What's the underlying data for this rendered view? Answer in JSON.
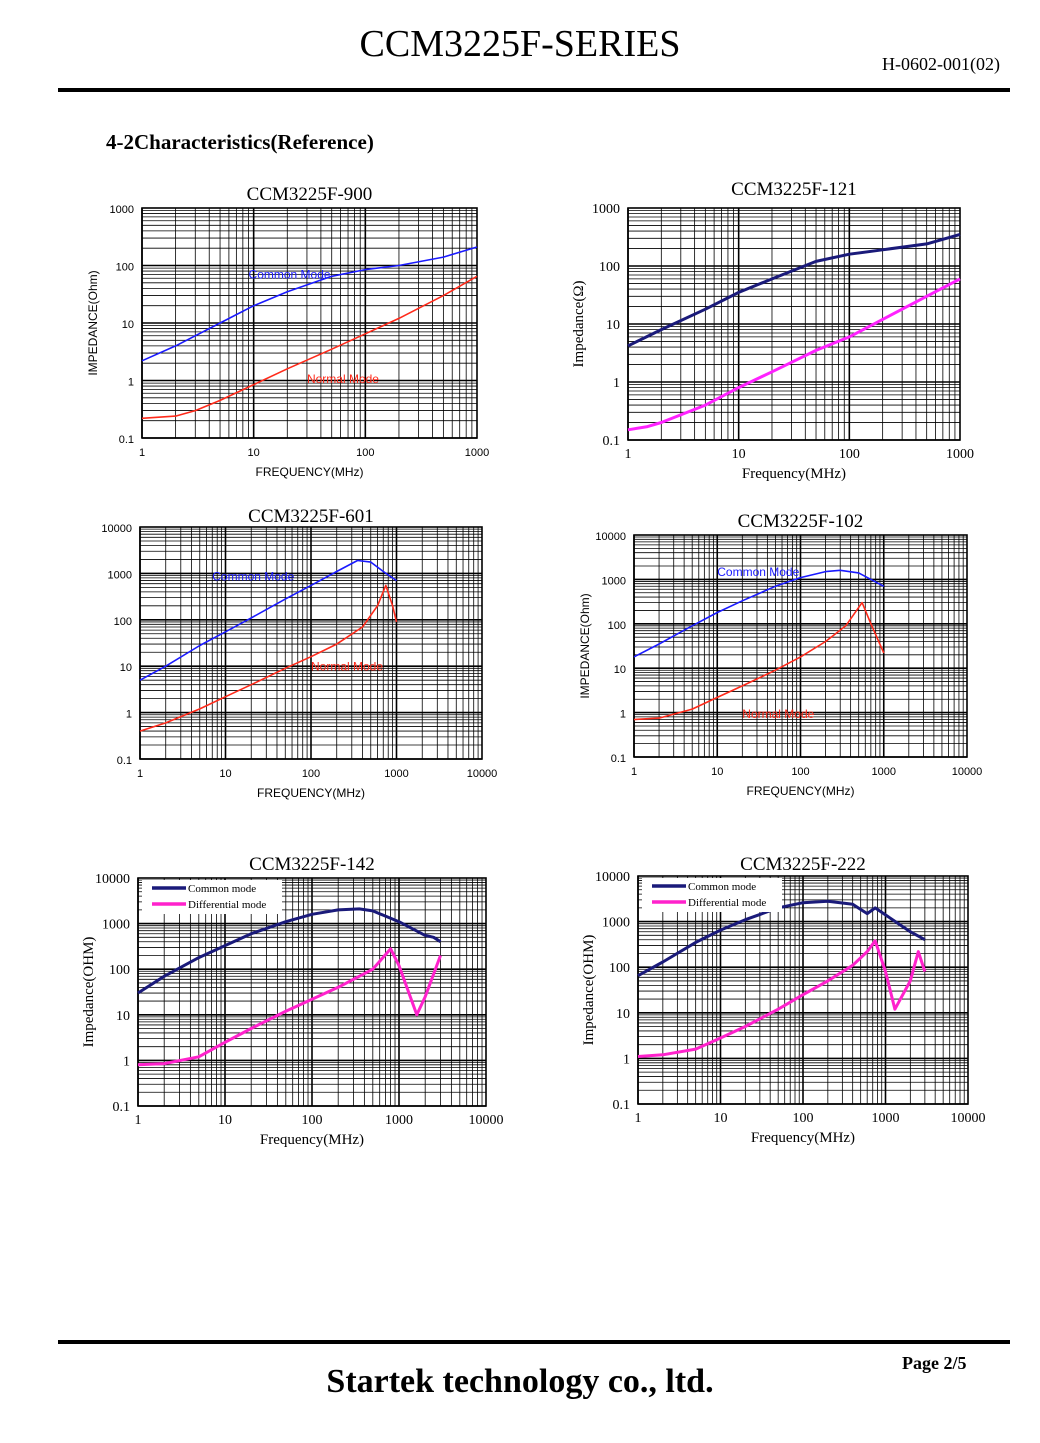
{
  "header": {
    "title": "CCM3225F-SERIES",
    "code": "H-0602-001(02)"
  },
  "section_title": "4-2Characteristics(Reference)",
  "footer": {
    "page": "Page 2/5",
    "company": "Startek technology co., ltd."
  },
  "chart_data": [
    {
      "type": "line",
      "title": "CCM3225F-900",
      "xlabel": "FREQUENCY(MHz)",
      "ylabel": "IMPEDANCE(Ohm)",
      "xscale": "log",
      "yscale": "log",
      "xlim": [
        1,
        1000
      ],
      "ylim": [
        0.1,
        1000
      ],
      "xticks": [
        "1",
        "10",
        "100",
        "1000"
      ],
      "yticks": [
        "0.1",
        "1",
        "10",
        "100",
        "1000"
      ],
      "grid": true,
      "series": [
        {
          "name": "Common Mode",
          "color": "#1a1aff",
          "x": [
            1,
            2,
            5,
            10,
            20,
            50,
            100,
            200,
            500,
            1000
          ],
          "y": [
            2.2,
            4,
            10,
            20,
            35,
            65,
            85,
            100,
            140,
            210
          ]
        },
        {
          "name": "Normal Mode",
          "color": "#ff2a1a",
          "x": [
            1,
            2,
            3,
            5,
            10,
            20,
            50,
            100,
            200,
            500,
            1000
          ],
          "y": [
            0.22,
            0.24,
            0.3,
            0.45,
            0.85,
            1.6,
            3.5,
            6.5,
            12,
            30,
            65
          ]
        }
      ]
    },
    {
      "type": "line",
      "title": "CCM3225F-121",
      "xlabel": "Frequency(MHz)",
      "ylabel": "Impedance(Ω)",
      "xscale": "log",
      "yscale": "log",
      "xlim": [
        1,
        1000
      ],
      "ylim": [
        0.1,
        1000
      ],
      "xticks": [
        "1",
        "10",
        "100",
        "1000"
      ],
      "yticks": [
        "0.1",
        "1",
        "10",
        "100",
        "1000"
      ],
      "grid": true,
      "series": [
        {
          "name": "",
          "color": "#1a1a7a",
          "x": [
            1,
            2,
            5,
            10,
            20,
            50,
            100,
            200,
            500,
            1000
          ],
          "y": [
            4.2,
            8,
            18,
            35,
            60,
            120,
            160,
            190,
            240,
            350
          ]
        },
        {
          "name": "",
          "color": "#ff22ff",
          "x": [
            1,
            1.5,
            2,
            5,
            10,
            20,
            50,
            100,
            200,
            500,
            1000
          ],
          "y": [
            0.15,
            0.17,
            0.2,
            0.4,
            0.8,
            1.5,
            3.5,
            6,
            12,
            30,
            60
          ]
        }
      ]
    },
    {
      "type": "line",
      "title": "CCM3225F-601",
      "xlabel": "FREQUENCY(MHz)",
      "ylabel": "",
      "xscale": "log",
      "yscale": "log",
      "xlim": [
        1,
        10000
      ],
      "ylim": [
        0.1,
        10000
      ],
      "xticks": [
        "1",
        "10",
        "100",
        "1000",
        "10000"
      ],
      "yticks": [
        "0.1",
        "1",
        "10",
        "100",
        "1000",
        "10000"
      ],
      "grid": true,
      "series": [
        {
          "name": "Common Mode",
          "color": "#1a1aff",
          "x": [
            1,
            2,
            5,
            10,
            20,
            50,
            100,
            200,
            350,
            500,
            700,
            1000
          ],
          "y": [
            5,
            10,
            28,
            55,
            110,
            280,
            550,
            1100,
            1900,
            1750,
            1100,
            700
          ]
        },
        {
          "name": "Normal Mode",
          "color": "#ff2a1a",
          "x": [
            1,
            2,
            5,
            10,
            20,
            50,
            100,
            200,
            400,
            600,
            750,
            900,
            1000
          ],
          "y": [
            0.4,
            0.6,
            1.2,
            2.2,
            4,
            9,
            16,
            30,
            70,
            200,
            550,
            200,
            90
          ]
        }
      ]
    },
    {
      "type": "line",
      "title": "CCM3225F-102",
      "xlabel": "FREQUENCY(MHz)",
      "ylabel": "IMPEDANCE(Ohm)",
      "xscale": "log",
      "yscale": "log",
      "xlim": [
        1,
        10000
      ],
      "ylim": [
        0.1,
        10000
      ],
      "xticks": [
        "1",
        "10",
        "100",
        "1000",
        "10000"
      ],
      "yticks": [
        "0.1",
        "1",
        "10",
        "100",
        "1000",
        "10000"
      ],
      "grid": true,
      "series": [
        {
          "name": "Common Mode",
          "color": "#1a1aff",
          "x": [
            1,
            2,
            5,
            10,
            20,
            50,
            100,
            200,
            300,
            500,
            700,
            1000
          ],
          "y": [
            18,
            35,
            90,
            180,
            330,
            700,
            1100,
            1500,
            1600,
            1400,
            1000,
            700
          ]
        },
        {
          "name": "Normal Mode",
          "color": "#ff2a1a",
          "x": [
            1,
            2,
            5,
            10,
            20,
            50,
            100,
            200,
            350,
            550,
            700,
            1000
          ],
          "y": [
            0.7,
            0.75,
            1.2,
            2.2,
            4,
            9,
            18,
            40,
            90,
            300,
            100,
            22
          ]
        }
      ]
    },
    {
      "type": "line",
      "title": "CCM3225F-142",
      "xlabel": "Frequency(MHz)",
      "ylabel": "Impedance(OHM)",
      "xscale": "log",
      "yscale": "log",
      "xlim": [
        1,
        10000
      ],
      "ylim": [
        0.1,
        10000
      ],
      "xticks": [
        "1",
        "10",
        "100",
        "1000",
        "10000"
      ],
      "yticks": [
        "0.1",
        "1",
        "10",
        "100",
        "1000",
        "10000"
      ],
      "grid": true,
      "legend": "top-left",
      "series": [
        {
          "name": "Common mode",
          "color": "#1a1a7a",
          "x": [
            1,
            2,
            5,
            10,
            20,
            50,
            100,
            200,
            350,
            500,
            1000,
            2000,
            2500,
            3000
          ],
          "y": [
            30,
            70,
            180,
            330,
            600,
            1100,
            1600,
            2000,
            2100,
            1900,
            1100,
            550,
            500,
            400
          ]
        },
        {
          "name": "Differential mode",
          "color": "#ff22cc",
          "x": [
            1,
            2,
            5,
            10,
            20,
            50,
            100,
            200,
            500,
            800,
            1000,
            1600,
            2000,
            3000
          ],
          "y": [
            0.8,
            0.85,
            1.2,
            2.5,
            5,
            12,
            22,
            40,
            100,
            280,
            120,
            10,
            25,
            200
          ]
        }
      ]
    },
    {
      "type": "line",
      "title": "CCM3225F-222",
      "xlabel": "Frequency(MHz)",
      "ylabel": "Impedance(OHM)",
      "xscale": "log",
      "yscale": "log",
      "xlim": [
        1,
        10000
      ],
      "ylim": [
        0.1,
        10000
      ],
      "xticks": [
        "1",
        "10",
        "100",
        "1000",
        "10000"
      ],
      "yticks": [
        "0.1",
        "1",
        "10",
        "100",
        "1000",
        "10000"
      ],
      "grid": true,
      "legend": "top-left",
      "series": [
        {
          "name": "Common mode",
          "color": "#1a1a7a",
          "x": [
            1,
            2,
            5,
            10,
            20,
            50,
            100,
            200,
            400,
            600,
            750,
            1000,
            2000,
            3000
          ],
          "y": [
            65,
            130,
            350,
            650,
            1100,
            2000,
            2600,
            2800,
            2400,
            1500,
            2000,
            1400,
            600,
            400
          ]
        },
        {
          "name": "Differential mode",
          "color": "#ff22cc",
          "x": [
            1,
            2,
            5,
            10,
            20,
            50,
            100,
            200,
            400,
            600,
            750,
            1000,
            1300,
            2000,
            2500,
            3000
          ],
          "y": [
            1.1,
            1.2,
            1.6,
            2.8,
            5,
            12,
            25,
            50,
            110,
            220,
            380,
            80,
            12,
            50,
            220,
            80
          ]
        }
      ]
    }
  ]
}
